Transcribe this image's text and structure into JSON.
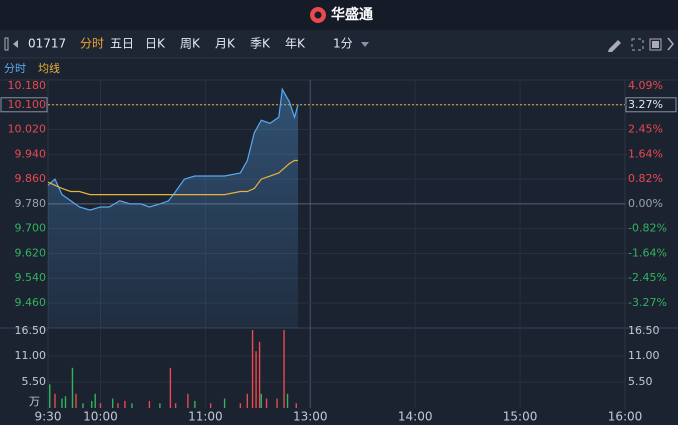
{
  "header": {
    "title": "华盛通"
  },
  "toolbar": {
    "code": "01717",
    "tabs": [
      "分时",
      "五日",
      "日K",
      "周K",
      "月K",
      "季K",
      "年K"
    ],
    "active_tab": 0,
    "interval": "1分"
  },
  "chart_data": {
    "type": "line",
    "x": [
      0,
      4,
      8,
      13,
      18,
      24,
      30,
      35,
      41,
      47,
      53,
      58,
      64,
      69,
      73,
      78,
      84,
      93,
      101,
      110,
      114,
      118,
      122,
      127,
      132,
      134,
      138,
      141,
      143
    ],
    "series": [
      {
        "name": "分时",
        "color": "#5aa9f0",
        "values": [
          9.84,
          9.86,
          9.81,
          9.79,
          9.77,
          9.76,
          9.77,
          9.77,
          9.79,
          9.78,
          9.78,
          9.77,
          9.78,
          9.79,
          9.82,
          9.86,
          9.87,
          9.87,
          9.87,
          9.88,
          9.92,
          10.01,
          10.05,
          10.04,
          10.06,
          10.15,
          10.11,
          10.06,
          10.1
        ]
      },
      {
        "name": "均线",
        "color": "#e8b33a",
        "values": [
          9.85,
          9.84,
          9.83,
          9.82,
          9.82,
          9.81,
          9.81,
          9.81,
          9.81,
          9.81,
          9.81,
          9.81,
          9.81,
          9.81,
          9.81,
          9.81,
          9.81,
          9.81,
          9.81,
          9.82,
          9.82,
          9.83,
          9.86,
          9.87,
          9.88,
          9.89,
          9.91,
          9.92,
          9.92
        ]
      }
    ],
    "xlim": [
      0,
      330
    ],
    "xticks": [
      {
        "value": 0,
        "label": "9:30"
      },
      {
        "value": 30,
        "label": "10:00"
      },
      {
        "value": 90,
        "label": "11:00"
      },
      {
        "value": 150,
        "label": "13:00"
      },
      {
        "value": 210,
        "label": "14:00"
      },
      {
        "value": 270,
        "label": "15:00"
      },
      {
        "value": 330,
        "label": "16:00"
      }
    ],
    "ylim": [
      9.46,
      10.18
    ],
    "yticks": [
      {
        "value": 10.18,
        "label": "10.180"
      },
      {
        "value": 10.1,
        "label": "10.100"
      },
      {
        "value": 10.02,
        "label": "10.020"
      },
      {
        "value": 9.94,
        "label": "9.940"
      },
      {
        "value": 9.86,
        "label": "9.860"
      },
      {
        "value": 9.78,
        "label": "9.780"
      },
      {
        "value": 9.7,
        "label": "9.700"
      },
      {
        "value": 9.62,
        "label": "9.620"
      },
      {
        "value": 9.54,
        "label": "9.540"
      },
      {
        "value": 9.46,
        "label": "9.460"
      }
    ],
    "y2lim": [
      -3.27,
      4.09
    ],
    "y2ticks": [
      {
        "value": 4.09,
        "label": "4.09%"
      },
      {
        "value": 3.27,
        "label": "3.27%"
      },
      {
        "value": 2.45,
        "label": "2.45%"
      },
      {
        "value": 1.64,
        "label": "1.64%"
      },
      {
        "value": 0.82,
        "label": "0.82%"
      },
      {
        "value": 0,
        "label": "0.00%"
      },
      {
        "value": -0.82,
        "label": "-0.82%"
      },
      {
        "value": -1.64,
        "label": "-1.64%"
      },
      {
        "value": -2.45,
        "label": "-2.45%"
      },
      {
        "value": -3.27,
        "label": "-3.27%"
      }
    ],
    "grid": true,
    "up_color": "#e84a4f",
    "down_color": "#33b35e",
    "volume": {
      "type": "bar",
      "x": [
        1,
        4,
        8,
        10,
        14,
        16,
        20,
        25,
        27,
        30,
        37,
        40,
        44,
        48,
        58,
        64,
        70,
        73,
        80,
        84,
        93,
        101,
        110,
        114,
        117,
        119,
        121,
        122,
        125,
        131,
        135,
        137,
        142
      ],
      "values": [
        5,
        3,
        2,
        2.5,
        8.5,
        3,
        1,
        1.5,
        3,
        1,
        2,
        1,
        1.5,
        1,
        1.5,
        1,
        8.5,
        1,
        3,
        1.5,
        1,
        2,
        1,
        3,
        16.5,
        12,
        14,
        3,
        2,
        2,
        16.5,
        3,
        1
      ],
      "colors": [
        "#33b35e",
        "#e84a4f",
        "#33b35e",
        "#33b35e",
        "#33b35e",
        "#e84a4f",
        "#33b35e",
        "#33b35e",
        "#33b35e",
        "#e84a4f",
        "#33b35e",
        "#e84a4f",
        "#e84a4f",
        "#33b35e",
        "#e84a4f",
        "#33b35e",
        "#e84a4f",
        "#e84a4f",
        "#e84a4f",
        "#33b35e",
        "#e84a4f",
        "#33b35e",
        "#e84a4f",
        "#e84a4f",
        "#e84a4f",
        "#e84a4f",
        "#e84a4f",
        "#33b35e",
        "#e84a4f",
        "#e84a4f",
        "#e84a4f",
        "#33b35e",
        "#e84a4f"
      ],
      "ylim": [
        0,
        16.5
      ],
      "yticks": [
        {
          "value": 5.5,
          "label": "5.50"
        },
        {
          "value": 11,
          "label": "11.00"
        },
        {
          "value": 16.5,
          "label": "16.50"
        }
      ],
      "unit": "万"
    }
  }
}
